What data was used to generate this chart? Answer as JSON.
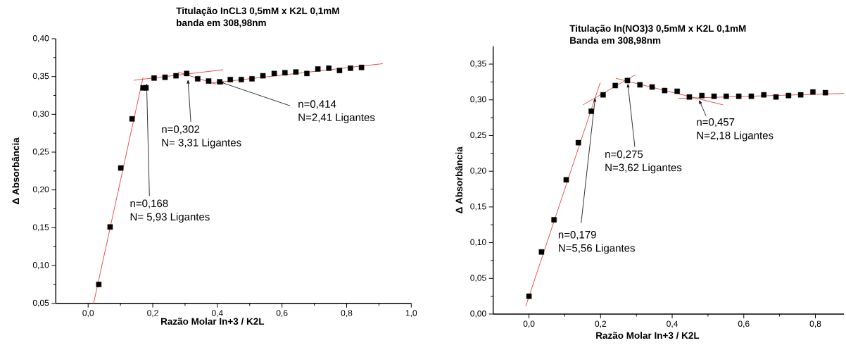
{
  "chart_data": [
    {
      "type": "scatter",
      "title": "Titulação InCL3 0,5mM x K2L 0,1mM",
      "subtitle": "banda em 308,98nm",
      "xlabel": "Razão Molar In+3 / K2L",
      "ylabel": "Δ Absorbância",
      "marker": "square",
      "xlim": [
        -0.1,
        1.0
      ],
      "ylim": [
        0.05,
        0.4
      ],
      "xticks": [
        {
          "value": 0.0,
          "label": "0,0"
        },
        {
          "value": 0.2,
          "label": "0,2"
        },
        {
          "value": 0.4,
          "label": "0,4"
        },
        {
          "value": 0.6,
          "label": "0,6"
        },
        {
          "value": 0.8,
          "label": "0,8"
        },
        {
          "value": 1.0,
          "label": "1,0"
        }
      ],
      "yticks": [
        {
          "value": 0.05,
          "label": "0,05"
        },
        {
          "value": 0.1,
          "label": "0,10"
        },
        {
          "value": 0.15,
          "label": "0,15"
        },
        {
          "value": 0.2,
          "label": "0,20"
        },
        {
          "value": 0.25,
          "label": "0,25"
        },
        {
          "value": 0.3,
          "label": "0,30"
        },
        {
          "value": 0.35,
          "label": "0,35"
        },
        {
          "value": 0.4,
          "label": "0,40"
        }
      ],
      "series": [
        {
          "color": "#e0261f",
          "type": "line",
          "marker": "none",
          "x": [
            0.017,
            0.17
          ],
          "values": [
            0.05,
            0.349
          ]
        },
        {
          "color": "#e0261f",
          "type": "line",
          "marker": "none",
          "x": [
            0.141,
            0.418
          ],
          "values": [
            0.345,
            0.359
          ]
        },
        {
          "color": "#e0261f",
          "type": "line",
          "marker": "none",
          "x": [
            0.278,
            0.396
          ],
          "values": [
            0.356,
            0.34
          ]
        },
        {
          "color": "#e0261f",
          "type": "line",
          "marker": "none",
          "x": [
            0.375,
            0.912
          ],
          "values": [
            0.341,
            0.367
          ]
        },
        {
          "color": "#000000",
          "x": [
            0.033,
            0.068,
            0.101,
            0.136,
            0.17,
            0.179,
            0.204,
            0.238,
            0.272,
            0.305,
            0.339,
            0.373,
            0.407,
            0.44,
            0.474,
            0.507,
            0.541,
            0.576,
            0.609,
            0.643,
            0.677,
            0.711,
            0.745,
            0.778,
            0.812,
            0.846
          ],
          "values": [
            0.075,
            0.151,
            0.229,
            0.294,
            0.335,
            0.335,
            0.348,
            0.349,
            0.351,
            0.354,
            0.347,
            0.344,
            0.343,
            0.346,
            0.346,
            0.347,
            0.351,
            0.354,
            0.355,
            0.356,
            0.354,
            0.36,
            0.361,
            0.358,
            0.361,
            0.362
          ]
        }
      ],
      "annotations": [
        {
          "text": "n=0,168",
          "x": 0.181,
          "y": 0.341
        },
        "N= 5,93 Ligantes",
        {
          "text": "n=0,302",
          "x": 0.309,
          "y": 0.346
        },
        "N= 3,31 Ligantes",
        {
          "text": "n=0,414",
          "x": 0.407,
          "y": 0.343
        },
        "N=2,41 Ligantes"
      ]
    },
    {
      "type": "scatter",
      "title": "Titulação In(NO3)3 0,5mM x K2L 0,1mM",
      "subtitle": "Banda em 308,98nm",
      "xlabel": "Razão Molar In+3 / K2L",
      "ylabel": "Δ Absorbância",
      "marker": "square",
      "xlim": [
        -0.1,
        0.88
      ],
      "ylim": [
        0.0,
        0.375
      ],
      "xticks": [
        {
          "value": 0.0,
          "label": "0,0"
        },
        {
          "value": 0.2,
          "label": "0,2"
        },
        {
          "value": 0.4,
          "label": "0,4"
        },
        {
          "value": 0.6,
          "label": "0,6"
        },
        {
          "value": 0.8,
          "label": "0,8"
        }
      ],
      "yticks": [
        {
          "value": 0.0,
          "label": "0,00"
        },
        {
          "value": 0.05,
          "label": "0,05"
        },
        {
          "value": 0.1,
          "label": "0,10"
        },
        {
          "value": 0.15,
          "label": "0,15"
        },
        {
          "value": 0.2,
          "label": "0,20"
        },
        {
          "value": 0.25,
          "label": "0,25"
        },
        {
          "value": 0.3,
          "label": "0,30"
        },
        {
          "value": 0.35,
          "label": "0,35"
        }
      ],
      "series": [
        {
          "color": "#e0261f",
          "type": "line",
          "marker": "none",
          "x": [
            -0.009,
            0.199
          ],
          "values": [
            0.011,
            0.324
          ]
        },
        {
          "color": "#e0261f",
          "type": "line",
          "marker": "none",
          "x": [
            0.151,
            0.297
          ],
          "values": [
            0.293,
            0.335
          ]
        },
        {
          "color": "#e0261f",
          "type": "line",
          "marker": "none",
          "x": [
            0.243,
            0.542
          ],
          "values": [
            0.33,
            0.293
          ]
        },
        {
          "color": "#e0261f",
          "type": "line",
          "marker": "none",
          "x": [
            0.418,
            0.88
          ],
          "values": [
            0.302,
            0.309
          ]
        },
        {
          "color": "#000000",
          "x": [
            0.0,
            0.035,
            0.07,
            0.104,
            0.138,
            0.174,
            0.207,
            0.241,
            0.275,
            0.31,
            0.344,
            0.379,
            0.414,
            0.448,
            0.483,
            0.517,
            0.551,
            0.586,
            0.621,
            0.656,
            0.69,
            0.725,
            0.759,
            0.793,
            0.828
          ],
          "values": [
            0.025,
            0.087,
            0.132,
            0.188,
            0.24,
            0.284,
            0.307,
            0.32,
            0.327,
            0.321,
            0.318,
            0.313,
            0.312,
            0.304,
            0.306,
            0.305,
            0.305,
            0.305,
            0.305,
            0.307,
            0.304,
            0.306,
            0.307,
            0.311,
            0.31
          ]
        }
      ],
      "annotations": [
        {
          "text": "n=0,179",
          "x": 0.185,
          "y": 0.303
        },
        "N=5,56 Ligantes",
        {
          "text": "n=0,275",
          "x": 0.276,
          "y": 0.323
        },
        "N=3,62 Ligantes",
        {
          "text": "n=0,457",
          "x": 0.475,
          "y": 0.3
        },
        "N=2,18 Ligantes"
      ]
    }
  ]
}
